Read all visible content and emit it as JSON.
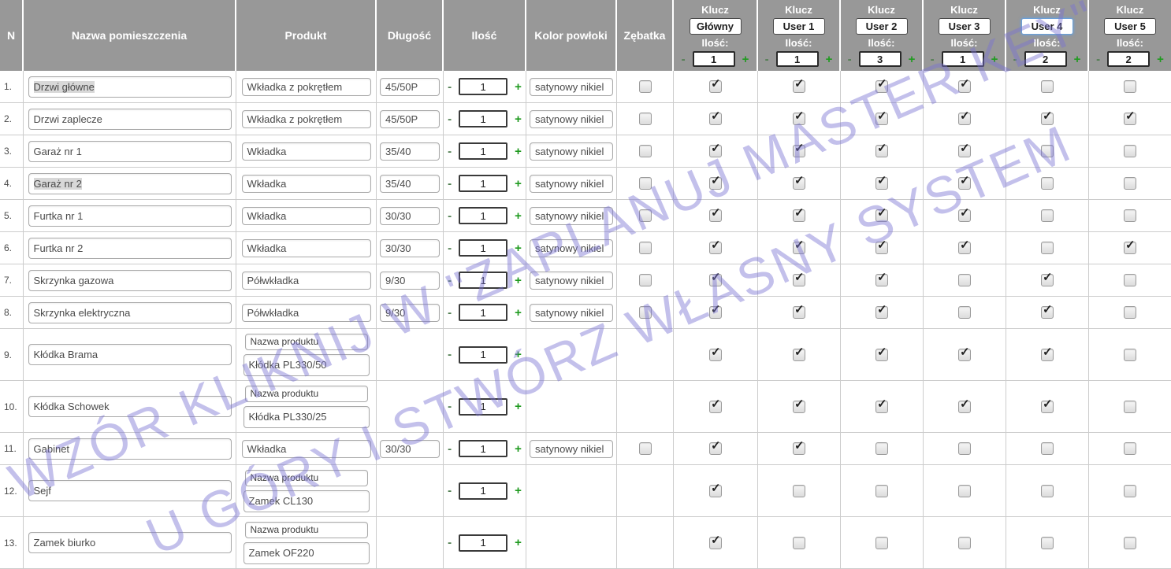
{
  "watermark": {
    "line1": "WZÓR KLIKNIJ W \"ZAPLANUJ MASTER KEY\"",
    "line2": "U GÓRY I STWÓRZ WŁASNY SYSTEM",
    "color": "#7a74d2"
  },
  "labels": {
    "minus": "-",
    "plus": "+",
    "product_select": "Nazwa produktu"
  },
  "icons": {
    "checkbox_checked": "✓"
  },
  "colors": {
    "header_bg": "#989898",
    "plus_green": "#1f9a1f",
    "grid_border": "#cccccc"
  },
  "header": {
    "n": "N",
    "room": "Nazwa pomieszczenia",
    "product": "Produkt",
    "length": "Długość",
    "qty": "Ilość",
    "color": "Kolor powłoki",
    "gear": "Zębatka",
    "key_label": "Klucz",
    "qty_label": "Ilość:",
    "keys": [
      {
        "name": "Główny",
        "qty": "1",
        "focused": false
      },
      {
        "name": "User 1",
        "qty": "1",
        "focused": false
      },
      {
        "name": "User 2",
        "qty": "3",
        "focused": false
      },
      {
        "name": "User 3",
        "qty": "1",
        "focused": false
      },
      {
        "name": "User 4",
        "qty": "2",
        "focused": true
      },
      {
        "name": "User 5",
        "qty": "2",
        "focused": false
      }
    ]
  },
  "rows": [
    {
      "n": "1.",
      "room": "Drzwi główne",
      "room_selected": true,
      "product_type": "standard",
      "product": "Wkładka z pokrętłem",
      "length": "45/50P",
      "qty": "1",
      "color": "satynowy nikiel",
      "gear": "unchecked",
      "keys": [
        true,
        true,
        true,
        true,
        false,
        false
      ]
    },
    {
      "n": "2.",
      "room": "Drzwi zaplecze",
      "room_selected": false,
      "product_type": "standard",
      "product": "Wkładka z pokrętłem",
      "length": "45/50P",
      "qty": "1",
      "color": "satynowy nikiel",
      "gear": "unchecked",
      "keys": [
        true,
        true,
        true,
        true,
        true,
        true
      ]
    },
    {
      "n": "3.",
      "room": "Garaż nr 1",
      "room_selected": false,
      "product_type": "standard",
      "product": "Wkładka",
      "length": "35/40",
      "qty": "1",
      "color": "satynowy nikiel",
      "gear": "unchecked",
      "keys": [
        true,
        true,
        true,
        true,
        false,
        false
      ]
    },
    {
      "n": "4.",
      "room": "Garaż nr 2",
      "room_selected": true,
      "product_type": "standard",
      "product": "Wkładka",
      "length": "35/40",
      "qty": "1",
      "color": "satynowy nikiel",
      "gear": "unchecked",
      "keys": [
        true,
        true,
        true,
        true,
        false,
        false
      ]
    },
    {
      "n": "5.",
      "room": "Furtka nr 1",
      "room_selected": false,
      "product_type": "standard",
      "product": "Wkładka",
      "length": "30/30",
      "qty": "1",
      "color": "satynowy nikiel",
      "gear": "unchecked",
      "keys": [
        true,
        true,
        true,
        true,
        false,
        false
      ]
    },
    {
      "n": "6.",
      "room": "Furtka nr 2",
      "room_selected": false,
      "product_type": "standard",
      "product": "Wkładka",
      "length": "30/30",
      "qty": "1",
      "color": "satynowy nikiel",
      "gear": "unchecked",
      "keys": [
        true,
        true,
        true,
        true,
        false,
        true
      ]
    },
    {
      "n": "7.",
      "room": "Skrzynka gazowa",
      "room_selected": false,
      "product_type": "standard",
      "product": "Półwkładka",
      "length": "9/30",
      "qty": "1",
      "color": "satynowy nikiel",
      "gear": "unchecked",
      "keys": [
        true,
        true,
        true,
        false,
        true,
        false
      ]
    },
    {
      "n": "8.",
      "room": "Skrzynka elektryczna",
      "room_selected": false,
      "product_type": "standard",
      "product": "Półwkładka",
      "length": "9/30",
      "qty": "1",
      "color": "satynowy nikiel",
      "gear": "unchecked",
      "keys": [
        true,
        true,
        true,
        false,
        true,
        false
      ]
    },
    {
      "n": "9.",
      "room": "Kłódka Brama",
      "room_selected": false,
      "product_type": "custom",
      "product": "Kłódka PL330/50",
      "length": "",
      "qty": "1",
      "color": "",
      "gear": "none",
      "keys": [
        true,
        true,
        true,
        true,
        true,
        false
      ]
    },
    {
      "n": "10.",
      "room": "Kłódka Schowek",
      "room_selected": false,
      "product_type": "custom",
      "product": "Kłódka PL330/25",
      "length": "",
      "qty": "1",
      "color": "",
      "gear": "none",
      "keys": [
        true,
        true,
        true,
        true,
        true,
        false
      ]
    },
    {
      "n": "11.",
      "room": "Gabinet",
      "room_selected": false,
      "product_type": "standard",
      "product": "Wkładka",
      "length": "30/30",
      "qty": "1",
      "color": "satynowy nikiel",
      "gear": "unchecked",
      "keys": [
        true,
        true,
        false,
        false,
        false,
        false
      ]
    },
    {
      "n": "12.",
      "room": "Sejf",
      "room_selected": false,
      "product_type": "custom",
      "product": "Zamek CL130",
      "length": "",
      "qty": "1",
      "color": "",
      "gear": "none",
      "keys": [
        true,
        false,
        false,
        false,
        false,
        false
      ]
    },
    {
      "n": "13.",
      "room": "Zamek biurko",
      "room_selected": false,
      "product_type": "custom",
      "product": "Zamek OF220",
      "length": "",
      "qty": "1",
      "color": "",
      "gear": "none",
      "keys": [
        true,
        false,
        false,
        false,
        false,
        false
      ]
    }
  ]
}
